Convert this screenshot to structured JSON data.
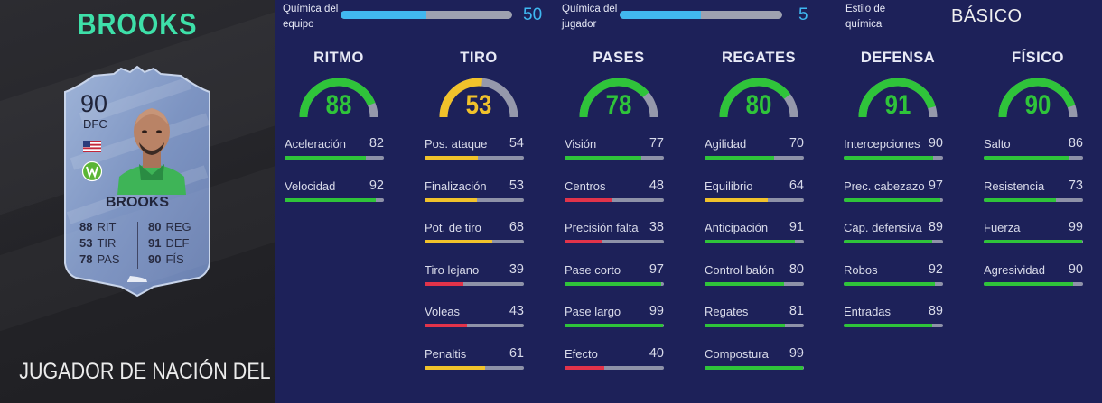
{
  "player": {
    "name": "BROOKS",
    "subtitle": "JUGADOR DE NACIÓN DEL FOF",
    "card": {
      "rating": "90",
      "position": "DFC",
      "name": "BROOKS",
      "stats": [
        {
          "value": "88",
          "label": "RIT"
        },
        {
          "value": "53",
          "label": "TIR"
        },
        {
          "value": "78",
          "label": "PAS"
        },
        {
          "value": "80",
          "label": "REG"
        },
        {
          "value": "91",
          "label": "DEF"
        },
        {
          "value": "90",
          "label": "FÍS"
        }
      ]
    }
  },
  "chemistry": {
    "team": {
      "label_line1": "Química del",
      "label_line2": "equipo",
      "value": "50",
      "fraction": 0.5
    },
    "player": {
      "label_line1": "Química del",
      "label_line2": "jugador",
      "value": "5",
      "fraction": 0.5
    },
    "style": {
      "label_line1": "Estilo de",
      "label_line2": "química",
      "value": "BÁSICO"
    }
  },
  "colors": {
    "green": "#2fc43a",
    "yellow": "#f1c22b",
    "red": "#e2334a",
    "chem_blue": "#41b7ef"
  },
  "categories": [
    {
      "title": "RITMO",
      "value": 88,
      "stats": [
        {
          "label": "Aceleración",
          "value": 82
        },
        {
          "label": "Velocidad",
          "value": 92
        }
      ]
    },
    {
      "title": "TIRO",
      "value": 53,
      "stats": [
        {
          "label": "Pos. ataque",
          "value": 54
        },
        {
          "label": "Finalización",
          "value": 53
        },
        {
          "label": "Pot. de tiro",
          "value": 68
        },
        {
          "label": "Tiro lejano",
          "value": 39
        },
        {
          "label": "Voleas",
          "value": 43
        },
        {
          "label": "Penaltis",
          "value": 61
        }
      ]
    },
    {
      "title": "PASES",
      "value": 78,
      "stats": [
        {
          "label": "Visión",
          "value": 77
        },
        {
          "label": "Centros",
          "value": 48
        },
        {
          "label": "Precisión falta",
          "value": 38
        },
        {
          "label": "Pase corto",
          "value": 97
        },
        {
          "label": "Pase largo",
          "value": 99
        },
        {
          "label": "Efecto",
          "value": 40
        }
      ]
    },
    {
      "title": "REGATES",
      "value": 80,
      "stats": [
        {
          "label": "Agilidad",
          "value": 70
        },
        {
          "label": "Equilibrio",
          "value": 64
        },
        {
          "label": "Anticipación",
          "value": 91
        },
        {
          "label": "Control balón",
          "value": 80
        },
        {
          "label": "Regates",
          "value": 81
        },
        {
          "label": "Compostura",
          "value": 99
        }
      ]
    },
    {
      "title": "DEFENSA",
      "value": 91,
      "stats": [
        {
          "label": "Intercepciones",
          "value": 90
        },
        {
          "label": "Prec. cabezazo",
          "value": 97
        },
        {
          "label": "Cap. defensiva",
          "value": 89
        },
        {
          "label": "Robos",
          "value": 92
        },
        {
          "label": "Entradas",
          "value": 89
        }
      ]
    },
    {
      "title": "FÍSICO",
      "value": 90,
      "stats": [
        {
          "label": "Salto",
          "value": 86
        },
        {
          "label": "Resistencia",
          "value": 73
        },
        {
          "label": "Fuerza",
          "value": 99
        },
        {
          "label": "Agresividad",
          "value": 90
        }
      ]
    }
  ]
}
